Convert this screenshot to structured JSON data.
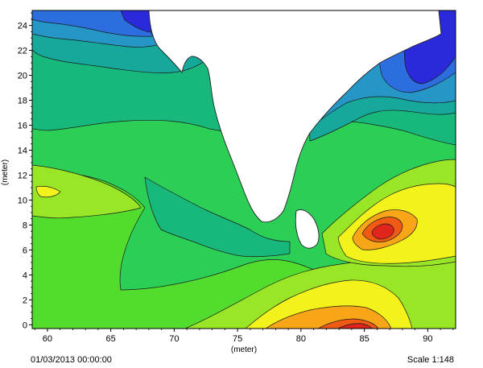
{
  "map": {
    "x_axis_label": "(meter)",
    "y_axis_label": "(meter)",
    "x_ticks": [
      60,
      65,
      70,
      75,
      80,
      85,
      90
    ],
    "y_ticks": [
      0,
      2,
      4,
      6,
      8,
      10,
      12,
      14,
      16,
      18,
      20,
      22,
      24
    ],
    "x_range": [
      58.8,
      92.2
    ],
    "y_range": [
      -0.3,
      25.2
    ],
    "colors": {
      "deep_blue": "#2a2adb",
      "blue": "#2c6ee0",
      "blue_teal": "#2596c6",
      "teal": "#16a89a",
      "teal_green": "#18b87c",
      "green": "#2ccf56",
      "bright_green": "#52dc2e",
      "yellow_green": "#98e626",
      "yellow": "#f3f21a",
      "orange": "#f8a618",
      "red_orange": "#ef5b14",
      "red": "#e0261c",
      "land": "#ffffff",
      "contour_line": "#1a1a1a"
    }
  },
  "footer": {
    "timestamp": "01/03/2013 00:00:00",
    "scale": "Scale 1:148"
  }
}
